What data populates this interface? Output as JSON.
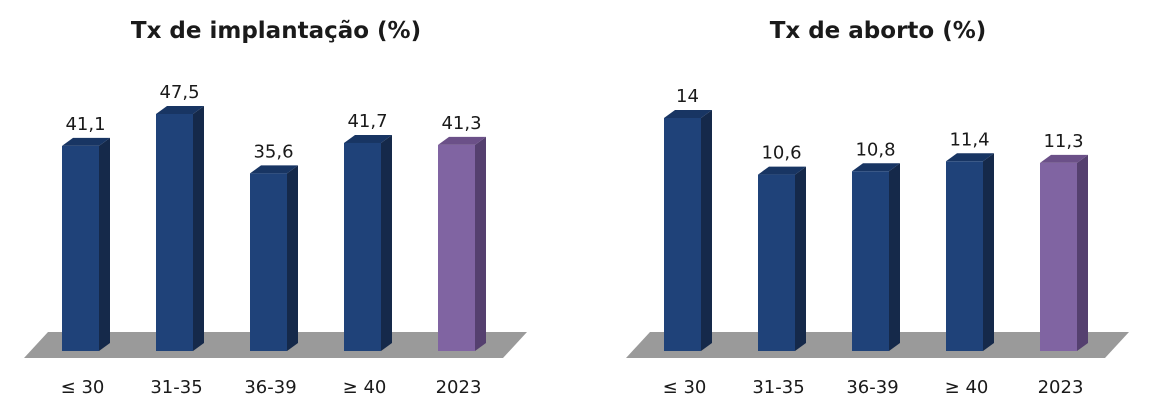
{
  "chart_data": [
    {
      "type": "bar",
      "title": "Tx de implantação (%)",
      "categories": [
        "≤ 30",
        "31-35",
        "36-39",
        "≥ 40",
        "2023"
      ],
      "values": [
        41.1,
        47.5,
        35.6,
        41.7,
        41.3
      ],
      "value_labels": [
        "41,1",
        "47,5",
        "35,6",
        "41,7",
        "41,3"
      ],
      "highlight_index": 4,
      "ylim": [
        0,
        50
      ],
      "grid": false,
      "legend": "none",
      "style": "3d"
    },
    {
      "type": "bar",
      "title": "Tx de aborto (%)",
      "categories": [
        "≤ 30",
        "31-35",
        "36-39",
        "≥ 40",
        "2023"
      ],
      "values": [
        14,
        10.6,
        10.8,
        11.4,
        11.3
      ],
      "value_labels": [
        "14",
        "10,6",
        "10,8",
        "11,4",
        "11,3"
      ],
      "highlight_index": 4,
      "ylim": [
        0,
        15
      ],
      "grid": false,
      "legend": "none",
      "style": "3d"
    }
  ],
  "colors": {
    "bar_front": "#1f4279",
    "bar_side": "#15294a",
    "bar_top": "#183563",
    "highlight_front": "#8064a2",
    "highlight_side": "#55406f",
    "highlight_top": "#6b5088",
    "floor": "#9a9a9a",
    "text": "#1a1a1a"
  }
}
